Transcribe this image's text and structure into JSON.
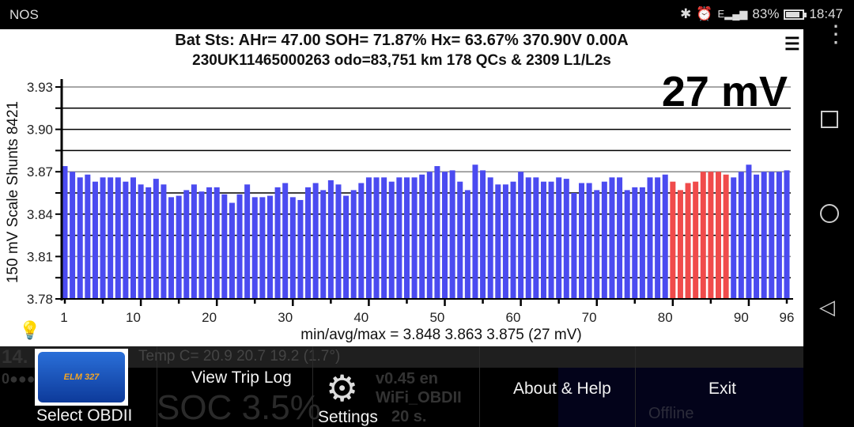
{
  "status_bar": {
    "carrier": "NOS",
    "battery": "83%",
    "battery_level": 0.83,
    "time": "18:47",
    "icons": [
      "bluetooth-icon",
      "alarm-icon",
      "signal-icon",
      "battery-icon"
    ]
  },
  "header": {
    "line1": "Bat Sts:  AHr= 47.00  SOH= 71.87%  Hx= 63.67%   370.90V 0.00A",
    "line2": "230UK11465000263 odo=83,751 km  178 QCs & 2309 L1/L2s",
    "delta": "27 mV",
    "menu_icon": "hamburger-icon"
  },
  "summary": "min/avg/max = 3.848 3.863 3.875  (27 mV)",
  "background_ghost": {
    "temp": "Temp C= 20.9  20.7  19.2  (1.7°)",
    "soc_prefix": "14.",
    "soc": "SOC  3.5%",
    "dots": "0●●●",
    "version": "v0.45    en",
    "wifi": "WiFi_OBDII",
    "date": "20        s.",
    "offline": "Offline"
  },
  "menu": {
    "items": [
      {
        "label": "Select OBDII",
        "icon": "obd-adapter-icon",
        "image_text": "ELM 327"
      },
      {
        "label": "View Trip Log"
      },
      {
        "label": "Settings",
        "icon": "gear-icon"
      },
      {
        "label": "About & Help"
      },
      {
        "label": "Exit"
      }
    ]
  },
  "colors": {
    "bar": "#4b4bf0",
    "highlight": "#f04b4b"
  },
  "chart_data": {
    "type": "bar",
    "ylabel": "150 mV Scale  Shunts 8421",
    "ylim": [
      3.78,
      3.93
    ],
    "yticks": [
      "3.93",
      "3.90",
      "3.87",
      "3.84",
      "3.81",
      "3.78"
    ],
    "xticks": [
      "1",
      "10",
      "20",
      "30",
      "40",
      "50",
      "60",
      "70",
      "80",
      "90",
      "96"
    ],
    "grid": true,
    "highlighted_cells": [
      81,
      82,
      83,
      84,
      85,
      86,
      87,
      88
    ],
    "values": [
      3.874,
      3.87,
      3.866,
      3.868,
      3.863,
      3.866,
      3.866,
      3.866,
      3.863,
      3.866,
      3.861,
      3.859,
      3.865,
      3.861,
      3.852,
      3.853,
      3.857,
      3.861,
      3.856,
      3.859,
      3.859,
      3.854,
      3.848,
      3.854,
      3.861,
      3.852,
      3.852,
      3.853,
      3.859,
      3.862,
      3.852,
      3.85,
      3.859,
      3.862,
      3.857,
      3.864,
      3.861,
      3.853,
      3.857,
      3.862,
      3.866,
      3.866,
      3.866,
      3.863,
      3.866,
      3.866,
      3.866,
      3.868,
      3.87,
      3.874,
      3.87,
      3.871,
      3.863,
      3.857,
      3.875,
      3.871,
      3.866,
      3.861,
      3.861,
      3.863,
      3.87,
      3.866,
      3.866,
      3.863,
      3.863,
      3.866,
      3.865,
      3.855,
      3.862,
      3.862,
      3.857,
      3.863,
      3.866,
      3.866,
      3.857,
      3.859,
      3.859,
      3.866,
      3.866,
      3.868,
      3.863,
      3.857,
      3.862,
      3.863,
      3.87,
      3.87,
      3.87,
      3.868,
      3.866,
      3.87,
      3.875,
      3.868,
      3.87,
      3.87,
      3.87,
      3.871
    ]
  }
}
